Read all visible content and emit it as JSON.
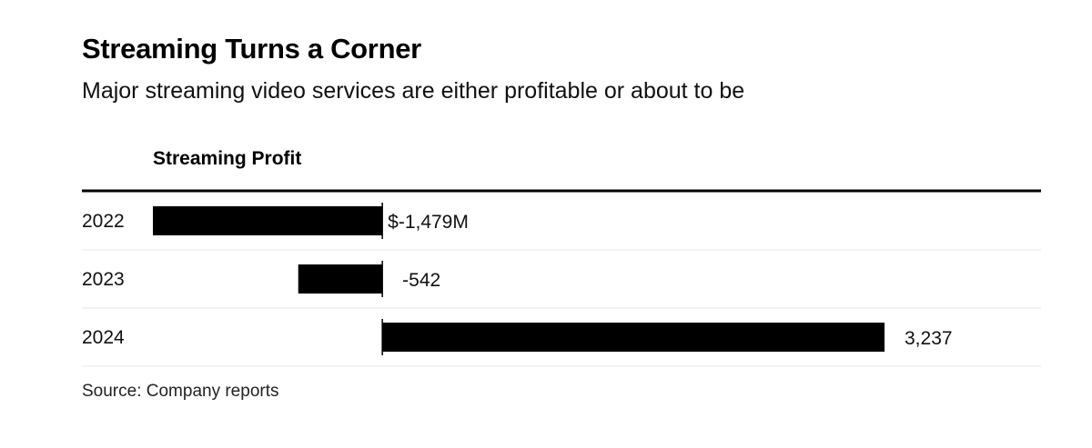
{
  "title": "Streaming Turns a Corner",
  "subtitle": "Major streaming video services are either profitable or about to be",
  "column_header": "Streaming Profit",
  "source": "Source: Company reports",
  "colors": {
    "bar": "#000000",
    "rule": "#000000",
    "separator": "#e6e6e6"
  },
  "chart_data": {
    "type": "bar",
    "orientation": "horizontal",
    "title": "Streaming Turns a Corner",
    "subtitle": "Major streaming video services are either profitable or about to be",
    "xlabel": "Streaming Profit",
    "ylabel": "",
    "unit": "M",
    "categories": [
      "2022",
      "2023",
      "2024"
    ],
    "values": [
      -1479,
      -542,
      3237
    ],
    "value_labels": [
      "$-1,479M",
      "-542",
      "3,237"
    ],
    "xlim": [
      -1479,
      3237
    ]
  }
}
